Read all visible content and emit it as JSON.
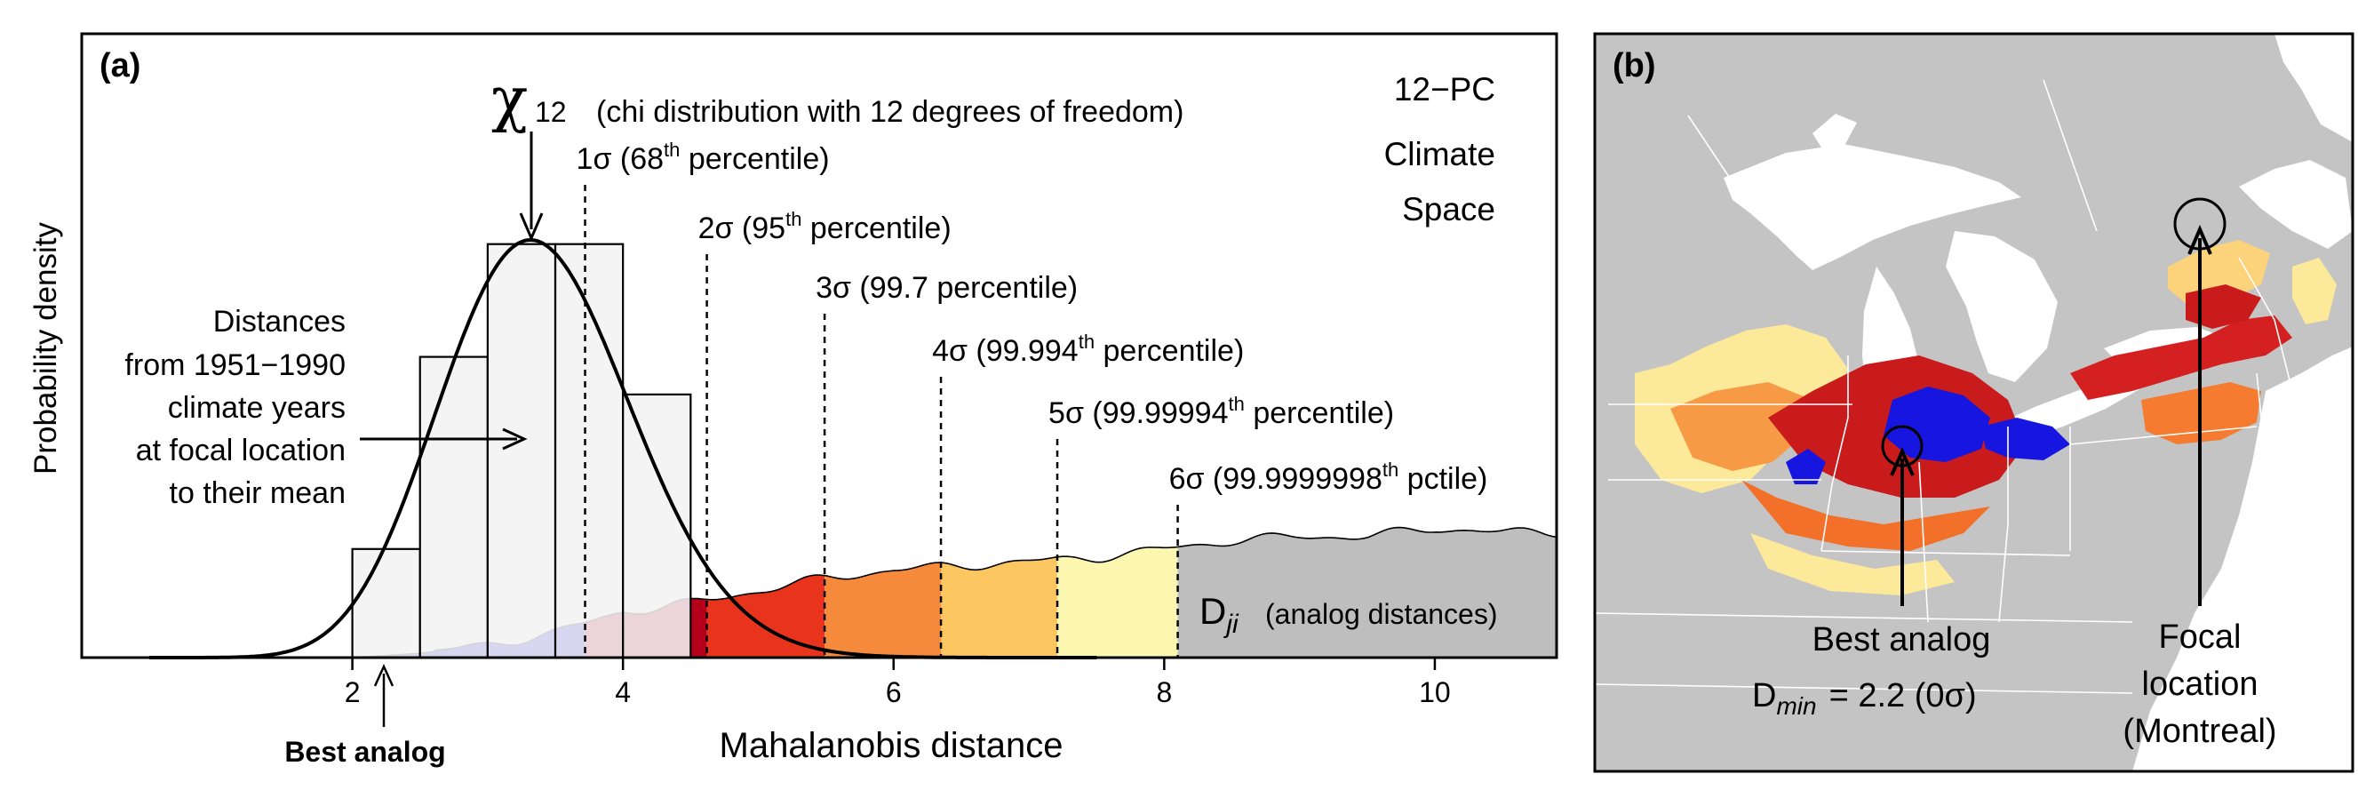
{
  "panel_a": {
    "label": "(a)",
    "chart_data": {
      "type": "bar",
      "xlabel": "Mahalanobis distance",
      "ylabel": "Probability density",
      "xlim": [
        0.0,
        10.9
      ],
      "ylim": [
        0,
        1
      ],
      "xticks": [
        2,
        4,
        6,
        8,
        10
      ],
      "histogram": {
        "name": "Distances from 1951−1990 climate years at focal location to their mean",
        "bin_edges": [
          2.0,
          2.5,
          3.0,
          3.5,
          4.0,
          4.5
        ],
        "density": [
          0.26,
          0.72,
          0.99,
          0.99,
          0.63
        ]
      },
      "chi_curve": {
        "name": "χ12",
        "df": 12,
        "peak_height": 1.0
      },
      "sigma_lines": [
        {
          "x": 3.72,
          "sigma": "1σ (",
          "pct": "68",
          "suffix": " percentile)"
        },
        {
          "x": 4.62,
          "sigma": "2σ (",
          "pct": "95",
          "suffix": " percentile)"
        },
        {
          "x": 5.49,
          "sigma": "3σ (99.7",
          "pct": "",
          "suffix": " percentile)"
        },
        {
          "x": 6.35,
          "sigma": "4σ (99.994",
          "pct": "th",
          "suffix": " percentile)"
        },
        {
          "x": 7.21,
          "sigma": "5σ (99.99994",
          "pct": "th",
          "suffix": " percentile)"
        },
        {
          "x": 8.1,
          "sigma": "6σ (99.9999998",
          "pct": "th",
          "suffix": " pctile)"
        }
      ],
      "analog_distances": {
        "x": [
          2.0,
          2.5,
          3.0,
          3.5,
          4.0,
          4.5,
          5.0,
          5.5,
          6.0,
          6.5,
          7.0,
          7.5,
          8.0,
          8.5,
          9.0,
          9.5,
          10.0,
          10.5,
          10.9
        ],
        "density": [
          0.0,
          0.01,
          0.03,
          0.06,
          0.11,
          0.13,
          0.16,
          0.19,
          0.21,
          0.22,
          0.23,
          0.24,
          0.26,
          0.28,
          0.29,
          0.29,
          0.31,
          0.3,
          0.3
        ],
        "band_colors": [
          "#1010e6",
          "#b5001c",
          "#e8341c",
          "#f58a3c",
          "#fcc761",
          "#fcf7b0",
          "#bebebe"
        ]
      }
    },
    "text": {
      "chi_symbol": "χ",
      "chi_sub": "12",
      "chi_desc": "(chi distribution with 12 degrees of freedom)",
      "space_line1": "12−PC",
      "space_line2": "Climate",
      "space_line3": "Space",
      "hist_line1": "Distances",
      "hist_line2": "from 1951−1990",
      "hist_line3": "climate years",
      "hist_line4": "at focal location",
      "hist_line5": "to their mean",
      "dji_main": "D",
      "dji_sub": "ji",
      "dji_desc": "(analog distances)",
      "best_analog": "Best analog",
      "th": "th"
    }
  },
  "panel_b": {
    "label": "(b)",
    "best_analog_line1": "Best analog",
    "dmin_main": "D",
    "dmin_sub": "min",
    "dmin_value": "= 2.2 (0σ)",
    "focal_line1": "Focal",
    "focal_line2": "location",
    "focal_line3": "(Montreal)",
    "colors": {
      "background": "#c4c4c4",
      "water": "#ffffff",
      "border": "#ffffff"
    }
  }
}
